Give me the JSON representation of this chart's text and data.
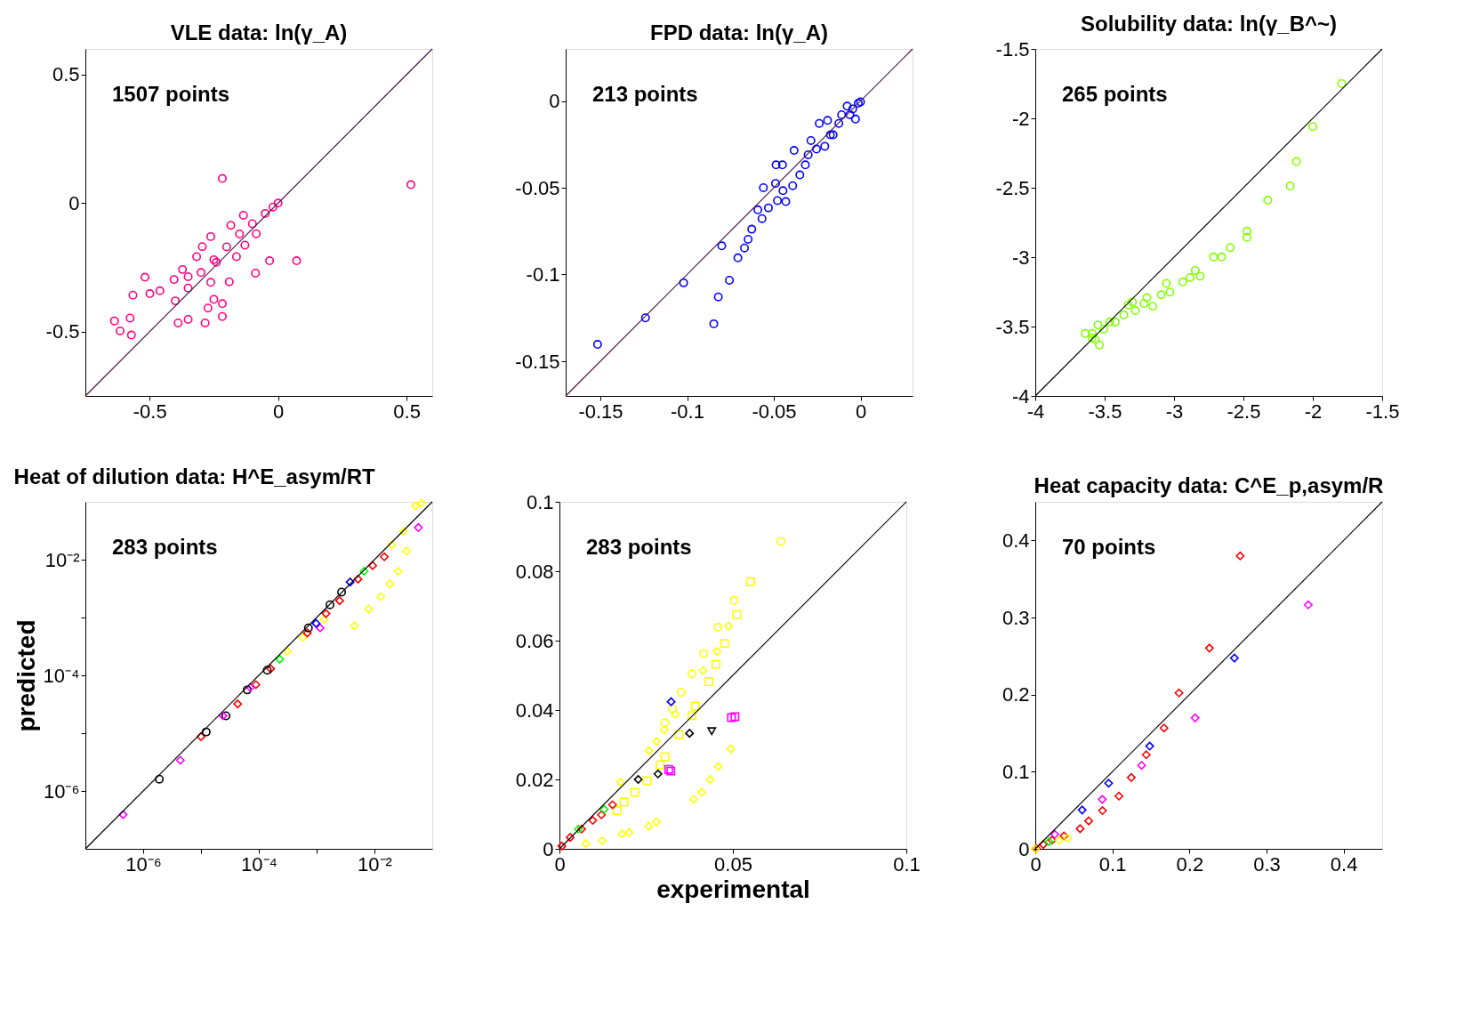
{
  "chart_data": [
    {
      "type": "scatter",
      "title": "VLE data:  ln(γ_A)",
      "annotations": [
        "1507 points"
      ],
      "xlim": [
        -0.75,
        0.6
      ],
      "ylim": [
        -0.75,
        0.6
      ],
      "xticks": [
        -0.5,
        0,
        0.5
      ],
      "yticks": [
        -0.5,
        0,
        0.5
      ],
      "series": [
        {
          "color": "#ff0080",
          "marker": "circle",
          "x": [
            -0.217,
            0.517,
            -0.033,
            0.072,
            -0.088,
            -0.518,
            -0.19,
            -0.637,
            -0.576,
            -0.571,
            -0.615,
            -0.565,
            -0.499,
            -0.46,
            -0.389,
            -0.35,
            -0.284,
            -0.217,
            -0.217,
            -0.372,
            -0.295,
            -0.135,
            -0.405,
            -0.262,
            -0.25,
            -0.273,
            -0.24,
            -0.262,
            -0.184,
            -0.317,
            -0.35,
            -0.162,
            -0.129,
            -0.085,
            -0.4,
            -0.35,
            -0.3,
            -0.25,
            -0.2,
            -0.15,
            -0.1,
            -0.05,
            -0.02,
            0
          ],
          "values": [
            0.096,
            0.072,
            -0.224,
            -0.224,
            -0.272,
            -0.288,
            -0.306,
            -0.458,
            -0.447,
            -0.513,
            -0.497,
            -0.358,
            -0.352,
            -0.341,
            -0.466,
            -0.452,
            -0.466,
            -0.441,
            -0.391,
            -0.258,
            -0.169,
            -0.047,
            -0.297,
            -0.308,
            -0.374,
            -0.408,
            -0.23,
            -0.13,
            -0.086,
            -0.208,
            -0.286,
            -0.208,
            -0.163,
            -0.119,
            -0.38,
            -0.33,
            -0.27,
            -0.22,
            -0.17,
            -0.12,
            -0.08,
            -0.04,
            -0.015,
            0
          ]
        },
        {
          "type": "line",
          "color": "#4b164b",
          "marker": "none",
          "x": [
            -0.75,
            0.6
          ],
          "values": [
            -0.75,
            0.6
          ]
        }
      ]
    },
    {
      "type": "scatter",
      "title": "FPD data:  ln(γ_A)",
      "annotations": [
        "213 points"
      ],
      "xlim": [
        -0.17,
        0.03
      ],
      "ylim": [
        -0.17,
        0.03
      ],
      "xticks": [
        -0.15,
        -0.1,
        -0.05,
        0
      ],
      "yticks": [
        -0.15,
        -0.1,
        -0.05,
        0
      ],
      "series": [
        {
          "color": "#0000ff",
          "marker": "circle",
          "x": [
            -0.1516,
            -0.124,
            -0.102,
            -0.08,
            -0.0846,
            -0.082,
            -0.0756,
            -0.0707,
            -0.0669,
            -0.0648,
            -0.0627,
            -0.0568,
            -0.0592,
            -0.0531,
            -0.056,
            -0.049,
            -0.0479,
            -0.0431,
            -0.0487,
            -0.045,
            -0.0383,
            -0.0391,
            -0.0447,
            -0.035,
            -0.0318,
            -0.0286,
            -0.0238,
            -0.019,
            -0.0254,
            -0.0206,
            -0.0158,
            -0.0125,
            -0.0077,
            -0.0029,
            -0.0061,
            0,
            -0.0013,
            -0.0109,
            -0.0174,
            -0.0302,
            -0.0045
          ],
          "values": [
            -0.1403,
            -0.125,
            -0.1048,
            -0.0835,
            -0.1284,
            -0.1129,
            -0.1033,
            -0.0904,
            -0.0847,
            -0.0797,
            -0.0739,
            -0.0678,
            -0.0627,
            -0.0616,
            -0.05,
            -0.0475,
            -0.0574,
            -0.058,
            -0.0368,
            -0.0368,
            -0.0285,
            -0.0488,
            -0.0517,
            -0.0426,
            -0.0368,
            -0.0228,
            -0.0129,
            -0.0112,
            -0.0277,
            -0.0261,
            -0.0195,
            -0.0129,
            -0.003,
            -0.0104,
            -0.0079,
            -0.0005,
            -0.0013,
            -0.0079,
            -0.0195,
            -0.031,
            -0.0046
          ]
        },
        {
          "type": "line",
          "color": "#4b164b",
          "marker": "none",
          "x": [
            -0.17,
            0.03
          ],
          "values": [
            -0.17,
            0.03
          ]
        }
      ]
    },
    {
      "type": "scatter",
      "title": "Solubility data:  ln(γ_B^~)",
      "annotations": [
        "265 points"
      ],
      "xlim": [
        -4,
        -1.5
      ],
      "ylim": [
        -4,
        -1.5
      ],
      "xticks": [
        -4,
        -3.5,
        -3,
        -2.5,
        -2,
        -1.5
      ],
      "yticks": [
        -4,
        -3.5,
        -3,
        -2.5,
        -2,
        -1.5
      ],
      "series": [
        {
          "color": "#80ff00",
          "marker": "circle",
          "x": [
            -1.792,
            -2.0,
            -2.118,
            -2.163,
            -2.325,
            -2.474,
            -2.474,
            -2.595,
            -2.657,
            -2.715,
            -2.812,
            -2.847,
            -2.885,
            -2.937,
            -3.03,
            -3.055,
            -3.092,
            -3.154,
            -3.216,
            -3.279,
            -3.33,
            -3.362,
            -3.424,
            -3.465,
            -3.507,
            -3.548,
            -3.59,
            -3.641,
            -3.569,
            -3.538,
            -3.59,
            -3.3,
            -3.196
          ],
          "values": [
            -1.75,
            -2.059,
            -2.311,
            -2.487,
            -2.59,
            -2.813,
            -2.858,
            -2.931,
            -2.999,
            -2.999,
            -3.137,
            -3.096,
            -3.147,
            -3.178,
            -3.251,
            -3.189,
            -3.271,
            -3.354,
            -3.333,
            -3.385,
            -3.344,
            -3.416,
            -3.467,
            -3.467,
            -3.519,
            -3.488,
            -3.55,
            -3.55,
            -3.591,
            -3.633,
            -3.581,
            -3.323,
            -3.292
          ]
        },
        {
          "type": "line",
          "color": "#000000",
          "marker": "none",
          "x": [
            -4,
            -1.5
          ],
          "values": [
            -4,
            -1.5
          ]
        }
      ]
    },
    {
      "type": "scatter",
      "title": "Heat of dilution data:  H^E_asym/RT",
      "ylabel": "predicted",
      "annotations": [
        "283 points"
      ],
      "log": "xy",
      "xlim": [
        1e-07,
        0.1
      ],
      "ylim": [
        1e-07,
        0.1
      ],
      "xticks": [
        {
          "value": 1e-06,
          "label": "10⁻⁶"
        },
        {
          "value": 1e-05,
          "label": null
        },
        {
          "value": 0.0001,
          "label": "10⁻⁴"
        },
        {
          "value": 0.001,
          "label": null
        },
        {
          "value": 0.01,
          "label": "10⁻²"
        }
      ],
      "yticks": [
        {
          "value": 1e-06,
          "label": "10⁻⁶"
        },
        {
          "value": 1e-05,
          "label": null
        },
        {
          "value": 0.0001,
          "label": "10⁻⁴"
        },
        {
          "value": 0.001,
          "label": null
        },
        {
          "value": 0.01,
          "label": "10⁻²"
        }
      ],
      "series": [
        {
          "color": "#ffff00",
          "marker": "diamond",
          "x": [
            0.0045,
            0.0079,
            0.0129,
            0.0186,
            0.0257,
            0.036,
            0.051,
            0.065,
            0.032,
            0.02,
            0.00058,
            0.00031,
            0.00135
          ],
          "values": [
            0.00072,
            0.0014,
            0.0023,
            0.0038,
            0.0063,
            0.0141,
            0.085,
            0.095,
            0.031,
            0.018,
            0.00045,
            0.00026,
            0.00093
          ]
        },
        {
          "color": "#ff0000",
          "marker": "diamond",
          "x": [
            1e-05,
            4.3e-05,
            8.9e-05,
            0.00016,
            0.00069,
            0.00145,
            0.0025,
            0.0052,
            0.0093,
            0.0148
          ],
          "values": [
            8.7e-06,
            3.2e-05,
            6.9e-05,
            0.00013,
            0.00054,
            0.00117,
            0.00195,
            0.0046,
            0.0079,
            0.0112
          ]
        },
        {
          "color": "#000000",
          "marker": "circle",
          "x": [
            1.9e-06,
            1.23e-05,
            2.7e-05,
            6.3e-05,
            0.00014,
            0.00072,
            0.0017,
            0.0027
          ],
          "values": [
            1.6e-06,
            1.05e-05,
            2e-05,
            5.6e-05,
            0.000123,
            0.00066,
            0.00166,
            0.00275
          ]
        },
        {
          "color": "#ff00ff",
          "marker": "diamond",
          "x": [
            4.5e-07,
            4.4e-06,
            2.4e-05,
            7.1e-05,
            0.00115,
            0.0575
          ],
          "values": [
            3.9e-07,
            3.4e-06,
            2e-05,
            6.2e-05,
            0.00066,
            0.036
          ]
        },
        {
          "color": "#0000ff",
          "marker": "diamond",
          "x": [
            0.00098,
            0.0038
          ],
          "values": [
            0.00079,
            0.0041
          ]
        },
        {
          "color": "#00ff00",
          "marker": "diamond",
          "x": [
            0.00023,
            0.0066
          ],
          "values": [
            0.00019,
            0.0063
          ]
        },
        {
          "type": "line",
          "color": "#000000",
          "marker": "none",
          "x": [
            1e-07,
            0.1
          ],
          "values": [
            1e-07,
            0.1
          ]
        }
      ]
    },
    {
      "type": "scatter",
      "xlabel": "experimental",
      "annotations": [
        "283 points"
      ],
      "xlim": [
        0,
        0.1
      ],
      "ylim": [
        0,
        0.1
      ],
      "xticks": [
        0,
        0.05,
        0.1
      ],
      "yticks": [
        0,
        0.02,
        0.04,
        0.06,
        0.08,
        0.1
      ],
      "series": [
        {
          "color": "#ffff00",
          "marker": "circle",
          "x": [
            0.0639,
            0.0504,
            0.0457,
            0.0416,
            0.0382,
            0.0351,
            0.0326,
            0.0304
          ],
          "values": [
            0.0886,
            0.0716,
            0.0639,
            0.0563,
            0.0504,
            0.0451,
            0.0404,
            0.0363
          ]
        },
        {
          "color": "#ffff00",
          "marker": "square",
          "x": [
            0.0551,
            0.0511,
            0.0476,
            0.0451,
            0.0431,
            0.0392,
            0.0382,
            0.0345,
            0.0304,
            0.029,
            0.0253,
            0.0217,
            0.0186,
            0.0166
          ],
          "values": [
            0.077,
            0.0675,
            0.0592,
            0.0532,
            0.0482,
            0.0411,
            0.0384,
            0.0329,
            0.0265,
            0.0242,
            0.0196,
            0.0163,
            0.0135,
            0.011
          ]
        },
        {
          "color": "#ffff00",
          "marker": "diamond",
          "x": [
            0.0488,
            0.0454,
            0.0414,
            0.0334,
            0.0302,
            0.028,
            0.0258,
            0.0176,
            0.0494,
            0.0458,
            0.0435,
            0.041,
            0.0387,
            0.028,
            0.0258,
            0.0201,
            0.018,
            0.0123,
            0.0076
          ],
          "values": [
            0.0642,
            0.0569,
            0.0514,
            0.0388,
            0.0343,
            0.031,
            0.0283,
            0.0192,
            0.0288,
            0.0237,
            0.02,
            0.0163,
            0.0143,
            0.0078,
            0.0065,
            0.0047,
            0.0043,
            0.0023,
            0.0015
          ]
        },
        {
          "color": "#000000",
          "marker": "diamond",
          "x": [
            0.0375,
            0.0227,
            0.0284
          ],
          "values": [
            0.0333,
            0.02,
            0.0216
          ]
        },
        {
          "color": "#000000",
          "marker": "triangle",
          "x": [
            0.0439
          ],
          "values": [
            0.0339
          ]
        },
        {
          "color": "#ff00ff",
          "marker": "square",
          "x": [
            0.0496,
            0.0506,
            0.0315,
            0.0321
          ],
          "values": [
            0.0378,
            0.0381,
            0.0229,
            0.0224
          ]
        },
        {
          "color": "#0000ff",
          "marker": "diamond",
          "x": [
            0.0322
          ],
          "values": [
            0.0424
          ]
        },
        {
          "color": "#ff0000",
          "marker": "diamond",
          "x": [
            0.0153,
            0.0121,
            0.0096,
            0.0064,
            0.0031,
            0.0007
          ],
          "values": [
            0.0127,
            0.0098,
            0.0082,
            0.0057,
            0.0033,
            0.0008
          ]
        },
        {
          "color": "#00ff00",
          "marker": "diamond",
          "x": [
            0.0129,
            0.0055
          ],
          "values": [
            0.0114,
            0.0057
          ]
        },
        {
          "type": "line",
          "color": "#000000",
          "marker": "none",
          "x": [
            0,
            0.1
          ],
          "values": [
            0,
            0.1
          ]
        }
      ]
    },
    {
      "type": "scatter",
      "title": "Heat capacity data:  C^E_p,asym/R",
      "annotations": [
        "70 points"
      ],
      "xlim": [
        0,
        0.45
      ],
      "ylim": [
        0,
        0.45
      ],
      "xticks": [
        0,
        0.1,
        0.2,
        0.3,
        0.4
      ],
      "yticks": [
        0,
        0.1,
        0.2,
        0.3,
        0.4
      ],
      "series": [
        {
          "color": "#ff0000",
          "marker": "diamond",
          "x": [
            0.2658,
            0.2259,
            0.1864,
            0.167,
            0.1439,
            0.1245,
            0.1085,
            0.0872,
            0.0693,
            0.0582,
            0.0373,
            0.0216,
            0.0104,
            0.0011
          ],
          "values": [
            0.3799,
            0.2604,
            0.2022,
            0.1567,
            0.122,
            0.0925,
            0.0683,
            0.0496,
            0.0362,
            0.0261,
            0.0168,
            0.0112,
            0.0056,
            0.0007
          ]
        },
        {
          "color": "#0000ff",
          "marker": "diamond",
          "x": [
            0.2583,
            0.1484,
            0.0951,
            0.0608
          ],
          "values": [
            0.2474,
            0.1332,
            0.0851,
            0.0504
          ]
        },
        {
          "color": "#ff00ff",
          "marker": "diamond",
          "x": [
            0.3541,
            0.2073,
            0.1379,
            0.0869,
            0.0253
          ],
          "values": [
            0.3164,
            0.1698,
            0.1082,
            0.0642,
            0.0187
          ]
        },
        {
          "color": "#ffff00",
          "marker": "diamond",
          "x": [
            0.0421,
            0.0309,
            0.0
          ],
          "values": [
            0.0138,
            0.0112,
            0.0
          ]
        },
        {
          "color": "#00ff00",
          "marker": "diamond",
          "x": [
            0.0179
          ],
          "values": [
            0.0093
          ]
        },
        {
          "type": "line",
          "color": "#000000",
          "marker": "none",
          "x": [
            0,
            0.45
          ],
          "values": [
            0,
            0.45
          ]
        }
      ]
    }
  ]
}
